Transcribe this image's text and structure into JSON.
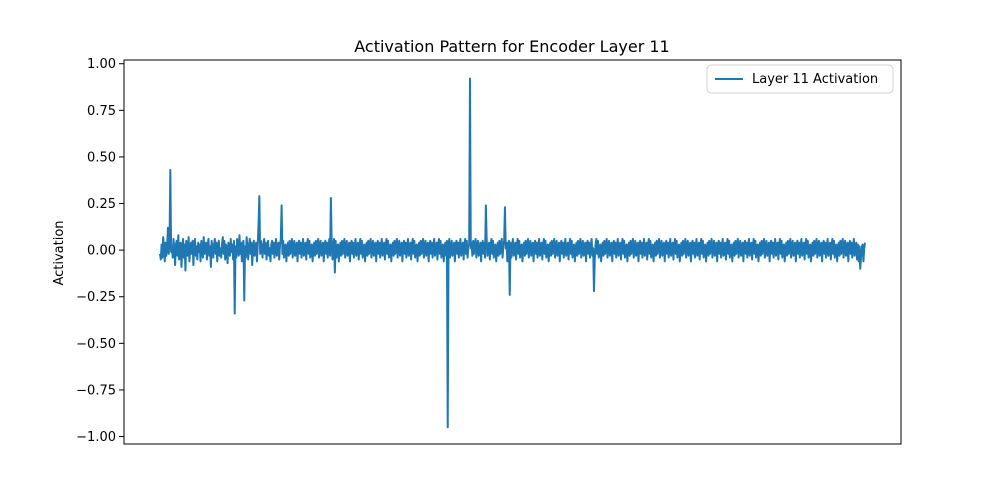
{
  "chart_data": {
    "type": "line",
    "title": "Activation Pattern for Encoder Layer 11",
    "xlabel": "",
    "ylabel": "Activation",
    "ylim": [
      -1.04,
      1.02
    ],
    "grid": false,
    "legend_placement": "top-right",
    "colors": {
      "series": "#1f77b4",
      "axes": "#000000",
      "background": "#ffffff"
    },
    "y_ticks": [
      {
        "value": 1.0,
        "label": "1.00"
      },
      {
        "value": 0.75,
        "label": "0.75"
      },
      {
        "value": 0.5,
        "label": "0.50"
      },
      {
        "value": 0.25,
        "label": "0.25"
      },
      {
        "value": 0.0,
        "label": "0.00"
      },
      {
        "value": -0.25,
        "label": "−0.25"
      },
      {
        "value": -0.5,
        "label": "−0.50"
      },
      {
        "value": -0.75,
        "label": "−0.75"
      },
      {
        "value": -1.0,
        "label": "−1.00"
      }
    ],
    "series": [
      {
        "name": "Layer 11 Activation",
        "x_range": [
          0,
          768
        ],
        "values": [
          -0.02,
          -0.05,
          0.03,
          -0.04,
          0.07,
          0.01,
          -0.06,
          0.04,
          -0.03,
          0.02,
          0.12,
          -0.02,
          0.05,
          0.43,
          -0.01,
          0.02,
          -0.04,
          0.06,
          0.01,
          -0.08,
          0.03,
          0.05,
          -0.03,
          0.08,
          -0.05,
          0.02,
          0.04,
          -0.09,
          0.01,
          0.06,
          -0.04,
          0.03,
          -0.11,
          0.05,
          0.02,
          -0.03,
          0.07,
          -0.06,
          0.01,
          0.04,
          -0.02,
          0.05,
          -0.08,
          0.03,
          0.06,
          -0.03,
          0.02,
          -0.05,
          0.04,
          -0.01,
          0.03,
          -0.06,
          0.05,
          0.02,
          -0.04,
          0.07,
          -0.02,
          0.01,
          0.04,
          -0.05,
          0.03,
          0.06,
          -0.03,
          0.02,
          -0.09,
          0.05,
          0.01,
          -0.04,
          0.03,
          0.06,
          -0.02,
          0.04,
          -0.06,
          0.02,
          0.05,
          -0.03,
          0.01,
          -0.04,
          0.03,
          0.07,
          -0.02,
          0.05,
          -0.05,
          0.03,
          0.01,
          -0.07,
          0.04,
          0.02,
          -0.03,
          0.06,
          -0.01,
          0.03,
          -0.05,
          0.05,
          -0.34,
          0.02,
          -0.04,
          0.06,
          0.01,
          -0.03,
          0.08,
          -0.02,
          0.04,
          -0.06,
          0.03,
          0.05,
          -0.27,
          0.02,
          -0.04,
          0.07,
          0.01,
          -0.05,
          0.03,
          0.06,
          -0.02,
          0.04,
          -0.08,
          0.02,
          0.05,
          -0.03,
          0.01,
          0.04,
          -0.06,
          0.03,
          0.14,
          0.29,
          -0.02,
          0.05,
          0.01,
          -0.04,
          0.03,
          0.06,
          -0.02,
          0.04,
          -0.05,
          0.02,
          0.05,
          -0.03,
          0.01,
          -0.06,
          0.03,
          0.05,
          -0.02,
          0.04,
          -0.04,
          0.02,
          0.06,
          -0.03,
          0.01,
          0.04,
          -0.05,
          0.03,
          0.06,
          0.24,
          -0.02,
          0.05,
          -0.04,
          0.02,
          0.03,
          -0.06,
          0.01,
          0.04,
          -0.03,
          0.05,
          -0.02,
          0.03,
          0.06,
          -0.04,
          0.02,
          0.05,
          -0.03,
          0.01,
          0.04,
          -0.06,
          0.03,
          0.05,
          -0.02,
          0.04,
          -0.04,
          0.02,
          0.06,
          -0.03,
          0.01,
          0.04,
          -0.05,
          0.03,
          0.06,
          -0.02,
          0.05,
          -0.04,
          0.02,
          0.03,
          -0.06,
          0.01,
          0.04,
          -0.03,
          0.05,
          -0.02,
          0.03,
          0.06,
          -0.04,
          0.02,
          0.05,
          -0.03,
          0.01,
          0.04,
          -0.06,
          0.03,
          0.05,
          -0.02,
          0.04,
          -0.04,
          0.02,
          0.06,
          -0.03,
          0.28,
          0.04,
          -0.05,
          0.03,
          0.06,
          -0.12,
          0.05,
          -0.04,
          0.02,
          0.03,
          -0.06,
          0.01,
          0.04,
          -0.03,
          0.05,
          -0.02,
          0.03,
          0.06,
          -0.04,
          0.02,
          0.05,
          -0.03,
          0.01,
          0.04,
          -0.06,
          0.03,
          0.05,
          -0.02,
          0.04,
          -0.04,
          0.02,
          0.06,
          -0.03,
          0.01,
          0.04,
          -0.05,
          0.03,
          0.06,
          -0.02,
          0.05,
          -0.04,
          0.02,
          0.03,
          -0.06,
          0.01,
          0.04,
          -0.03,
          0.05,
          -0.02,
          0.03,
          0.06,
          -0.04,
          0.02,
          0.05,
          -0.03,
          0.01,
          0.04,
          -0.06,
          0.03,
          0.05,
          -0.02,
          0.04,
          -0.04,
          0.02,
          0.06,
          -0.03,
          0.01,
          0.04,
          -0.05,
          0.03,
          0.06,
          -0.02,
          0.05,
          -0.04,
          0.02,
          0.03,
          -0.06,
          0.01,
          0.04,
          -0.03,
          0.05,
          -0.02,
          0.03,
          0.06,
          -0.04,
          0.02,
          0.05,
          -0.03,
          0.01,
          0.04,
          -0.06,
          0.03,
          0.05,
          -0.02,
          0.04,
          -0.04,
          0.02,
          0.06,
          -0.03,
          0.01,
          0.04,
          -0.05,
          0.03,
          0.06,
          -0.02,
          0.05,
          -0.04,
          0.02,
          0.03,
          -0.06,
          0.01,
          0.04,
          -0.03,
          0.05,
          -0.02,
          0.03,
          0.06,
          -0.04,
          0.02,
          0.05,
          -0.03,
          0.01,
          0.04,
          -0.06,
          0.03,
          0.05,
          -0.02,
          0.04,
          -0.04,
          0.02,
          0.06,
          -0.03,
          0.01,
          0.04,
          -0.05,
          0.03,
          0.06,
          -0.02,
          0.05,
          -0.04,
          0.02,
          0.03,
          -0.06,
          0.01,
          0.04,
          -0.03,
          0.05,
          -0.95,
          0.03,
          0.06,
          -0.04,
          0.02,
          0.05,
          -0.03,
          0.01,
          0.04,
          -0.06,
          0.03,
          0.05,
          -0.02,
          0.04,
          -0.04,
          0.02,
          0.06,
          -0.03,
          0.01,
          0.04,
          -0.05,
          0.03,
          0.06,
          -0.02,
          0.05,
          -0.04,
          0.02,
          0.03,
          0.92,
          0.01,
          0.04,
          -0.03,
          0.05,
          -0.02,
          0.03,
          0.06,
          -0.04,
          0.02,
          0.05,
          -0.03,
          0.01,
          0.04,
          -0.06,
          0.03,
          0.05,
          -0.02,
          0.04,
          -0.04,
          0.24,
          0.06,
          -0.03,
          0.01,
          0.04,
          -0.05,
          0.03,
          0.06,
          -0.02,
          0.05,
          -0.04,
          0.02,
          0.03,
          -0.06,
          0.01,
          0.04,
          -0.03,
          0.05,
          -0.02,
          0.03,
          0.06,
          -0.04,
          0.02,
          0.05,
          0.23,
          0.01,
          0.04,
          -0.06,
          0.03,
          0.05,
          -0.24,
          0.04,
          -0.04,
          0.02,
          0.06,
          -0.03,
          0.01,
          0.04,
          -0.05,
          0.03,
          0.06,
          -0.02,
          0.05,
          -0.04,
          0.02,
          0.03,
          -0.06,
          0.01,
          0.04,
          -0.03,
          0.05,
          -0.02,
          0.03,
          0.06,
          -0.04,
          0.02,
          0.05,
          -0.03,
          0.01,
          0.04,
          -0.06,
          0.03,
          0.05,
          -0.02,
          0.04,
          -0.04,
          0.02,
          0.06,
          -0.03,
          0.01,
          0.04,
          -0.05,
          0.03,
          0.06,
          -0.02,
          0.05,
          -0.04,
          0.02,
          0.03,
          -0.06,
          0.01,
          0.04,
          -0.03,
          0.05,
          -0.02,
          0.03,
          0.06,
          -0.04,
          0.02,
          0.05,
          -0.03,
          0.01,
          0.04,
          -0.06,
          0.03,
          0.05,
          -0.02,
          0.04,
          -0.04,
          0.02,
          0.06,
          -0.03,
          0.01,
          0.04,
          -0.05,
          0.03,
          0.06,
          -0.02,
          0.05,
          -0.04,
          0.02,
          0.03,
          -0.06,
          0.01,
          0.04,
          -0.03,
          0.05,
          -0.02,
          0.03,
          0.06,
          -0.04,
          0.02,
          0.05,
          -0.03,
          0.01,
          0.04,
          -0.06,
          0.03,
          0.05,
          -0.02,
          0.04,
          -0.04,
          0.02,
          0.06,
          -0.03,
          0.01,
          -0.22,
          -0.05,
          0.03,
          0.06,
          -0.02,
          0.05,
          -0.04,
          0.02,
          0.03,
          -0.06,
          0.01,
          0.04,
          -0.03,
          0.05,
          -0.02,
          0.03,
          0.06,
          -0.04,
          0.02,
          0.05,
          -0.03,
          0.01,
          0.04,
          -0.06,
          0.03,
          0.05,
          -0.02,
          0.04,
          -0.04,
          0.02,
          0.06,
          -0.03,
          0.01,
          0.04,
          -0.05,
          0.03,
          0.06,
          -0.02,
          0.05,
          -0.04,
          0.02,
          0.03,
          -0.06,
          0.01,
          0.04,
          -0.03,
          0.05,
          -0.02,
          0.03,
          0.06,
          -0.04,
          0.02,
          0.05,
          -0.03,
          0.01,
          0.04,
          -0.06,
          0.03,
          0.05,
          -0.02,
          0.04,
          -0.04,
          0.02,
          0.06,
          -0.03,
          0.01,
          0.04,
          -0.05,
          0.03,
          0.06,
          -0.02,
          0.05,
          -0.04,
          0.02,
          0.03,
          -0.06,
          0.01,
          0.04,
          -0.03,
          0.05,
          -0.02,
          0.03,
          0.06,
          -0.04,
          0.02,
          0.05,
          -0.03,
          0.01,
          0.04,
          -0.06,
          0.03,
          0.05,
          -0.02,
          0.04,
          -0.04,
          0.02,
          0.06,
          -0.03,
          0.01,
          0.04,
          -0.05,
          0.03,
          0.06,
          -0.02,
          0.05,
          -0.04,
          0.02,
          0.03,
          -0.06,
          0.01,
          0.04,
          -0.03,
          0.05,
          -0.02,
          0.03,
          0.06,
          -0.04,
          0.02,
          0.05,
          -0.03,
          0.01,
          0.04,
          -0.06,
          0.03,
          0.05,
          -0.02,
          0.04,
          -0.04,
          0.02,
          0.06,
          -0.03,
          0.01,
          0.04,
          -0.05,
          0.03,
          0.06,
          -0.02,
          0.05,
          -0.04,
          0.02,
          0.03,
          -0.06,
          0.01,
          0.04,
          -0.03,
          0.05,
          -0.02,
          0.03,
          0.06,
          -0.04,
          0.02,
          0.05,
          -0.03,
          0.01,
          0.04,
          -0.06,
          0.03,
          0.05,
          -0.02,
          0.04,
          -0.04,
          0.02,
          0.06,
          -0.03,
          0.01,
          0.04,
          -0.05,
          0.03,
          0.06,
          -0.02,
          0.05,
          -0.04,
          0.02,
          0.03,
          -0.06,
          0.01,
          0.04,
          -0.03,
          0.05,
          -0.02,
          0.03,
          0.06,
          -0.04,
          0.02,
          0.05,
          -0.03,
          0.01,
          0.04,
          -0.06,
          0.03,
          0.05,
          -0.02,
          0.04,
          -0.04,
          0.02,
          0.06,
          -0.03,
          0.01,
          0.04,
          -0.05,
          0.03,
          0.06,
          -0.02,
          0.05,
          -0.04,
          0.02,
          0.03,
          -0.06,
          0.01,
          0.04,
          -0.03,
          0.05,
          -0.02,
          0.03,
          0.06,
          -0.04,
          0.02,
          0.05,
          -0.03,
          0.01,
          0.04,
          -0.06,
          0.03,
          0.05,
          -0.02,
          0.04,
          -0.04,
          0.02,
          0.06,
          -0.03,
          0.01,
          0.04,
          -0.05,
          0.03,
          0.06,
          -0.02,
          0.05,
          -0.04,
          0.02,
          0.03,
          -0.06,
          0.01,
          0.04,
          -0.03,
          0.05,
          -0.02,
          0.03,
          0.06,
          -0.04,
          0.02,
          0.05,
          -0.03,
          0.01,
          0.04,
          -0.06,
          0.03,
          0.05,
          -0.02,
          0.04,
          -0.04,
          0.02,
          0.06,
          -0.03,
          0.01,
          0.04,
          -0.05,
          0.03,
          0.06,
          -0.02,
          0.05,
          -0.04,
          0.02,
          0.03,
          -0.06,
          0.01,
          0.04,
          -0.03,
          0.05,
          -0.02,
          0.03,
          0.06,
          -0.04,
          0.02,
          0.05,
          -0.03,
          0.01,
          0.04,
          -0.06,
          0.03,
          0.05,
          -0.02,
          0.04,
          -0.04,
          0.02,
          0.06,
          -0.03,
          0.01,
          0.04,
          -0.05,
          0.03,
          0.06,
          -0.02,
          0.05,
          -0.04,
          0.02,
          0.03,
          -0.06,
          0.01,
          0.04,
          -0.03,
          0.05,
          -0.02,
          0.03,
          0.06,
          -0.04,
          0.02,
          0.05,
          -0.03,
          0.01,
          0.04,
          -0.06,
          0.03,
          0.05,
          -0.02,
          0.04,
          -0.04,
          0.02,
          0.06,
          -0.03,
          0.01,
          0.04,
          -0.05,
          0.03,
          -0.06,
          0.02,
          -0.1,
          -0.04,
          0.02,
          0.03,
          -0.06,
          0.01,
          0.04
        ]
      }
    ]
  }
}
